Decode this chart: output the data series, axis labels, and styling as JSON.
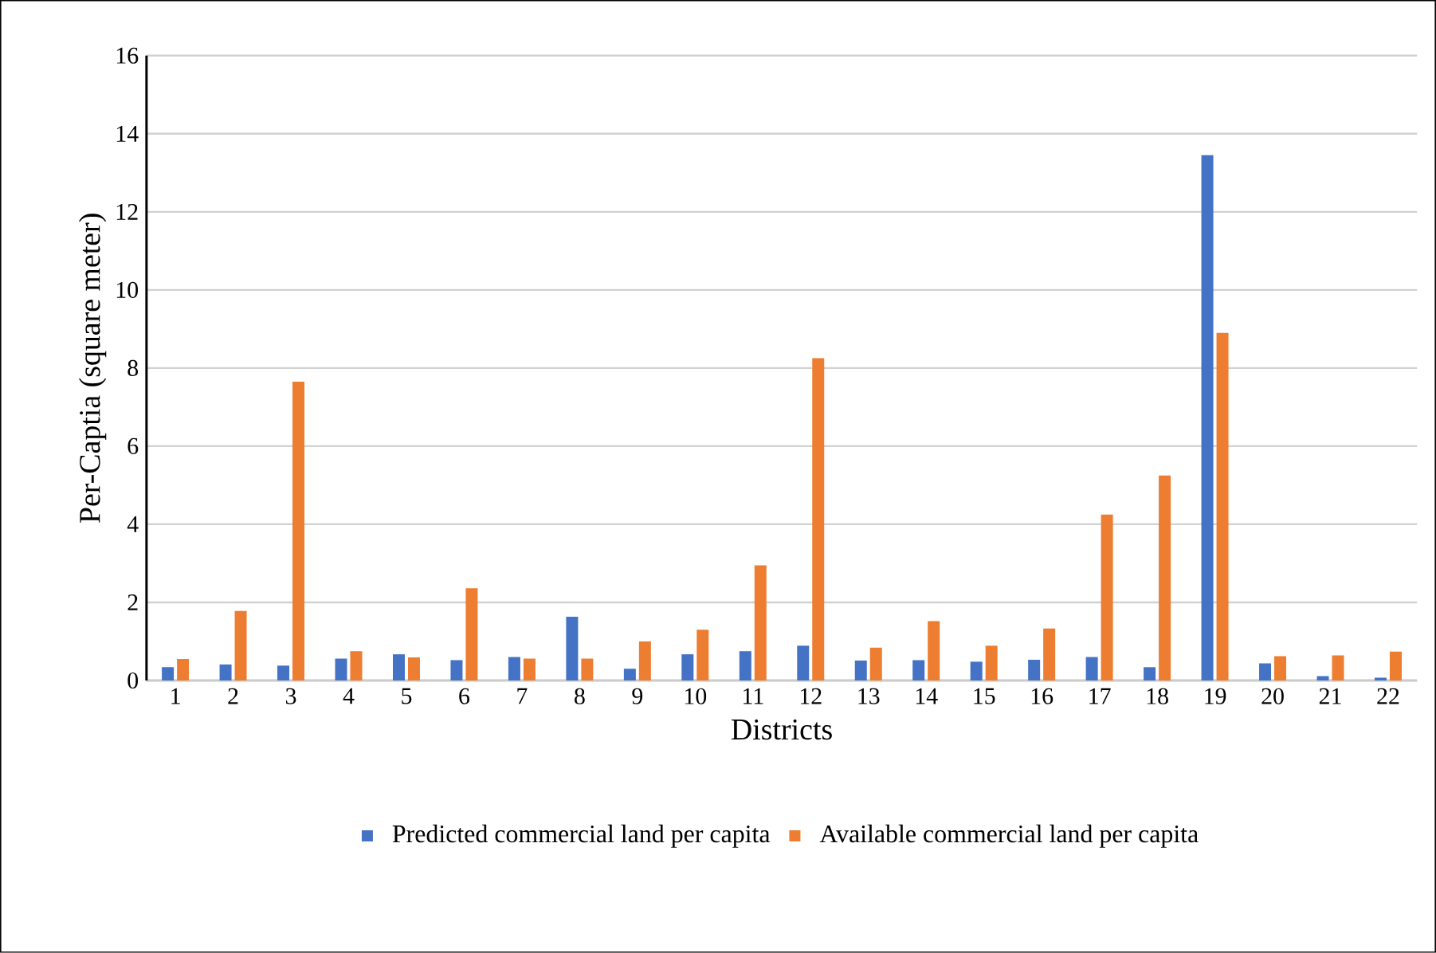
{
  "chart_data": {
    "type": "bar",
    "xlabel": "Districts",
    "ylabel": "Per-Captia (square meter)",
    "categories": [
      "1",
      "2",
      "3",
      "4",
      "5",
      "6",
      "7",
      "8",
      "9",
      "10",
      "11",
      "12",
      "13",
      "14",
      "15",
      "16",
      "17",
      "18",
      "19",
      "20",
      "21",
      "22"
    ],
    "series": [
      {
        "name": "Predicted commercial land per capita",
        "color": "#4472c4",
        "values": [
          0.34,
          0.41,
          0.38,
          0.56,
          0.67,
          0.52,
          0.6,
          1.63,
          0.3,
          0.67,
          0.75,
          0.89,
          0.51,
          0.52,
          0.48,
          0.53,
          0.6,
          0.34,
          13.45,
          0.44,
          0.11,
          0.07
        ]
      },
      {
        "name": "Available commercial land per capita",
        "color": "#ed7d31",
        "values": [
          0.55,
          1.78,
          7.65,
          0.75,
          0.59,
          2.36,
          0.56,
          0.56,
          1.0,
          1.3,
          2.95,
          8.25,
          0.84,
          1.52,
          0.89,
          1.33,
          4.25,
          5.25,
          8.9,
          0.62,
          0.64,
          0.74
        ]
      }
    ],
    "ylim": [
      0,
      16
    ],
    "yticks": [
      0,
      2,
      4,
      6,
      8,
      10,
      12,
      14,
      16
    ],
    "grid": "y",
    "legend": "bottom"
  }
}
